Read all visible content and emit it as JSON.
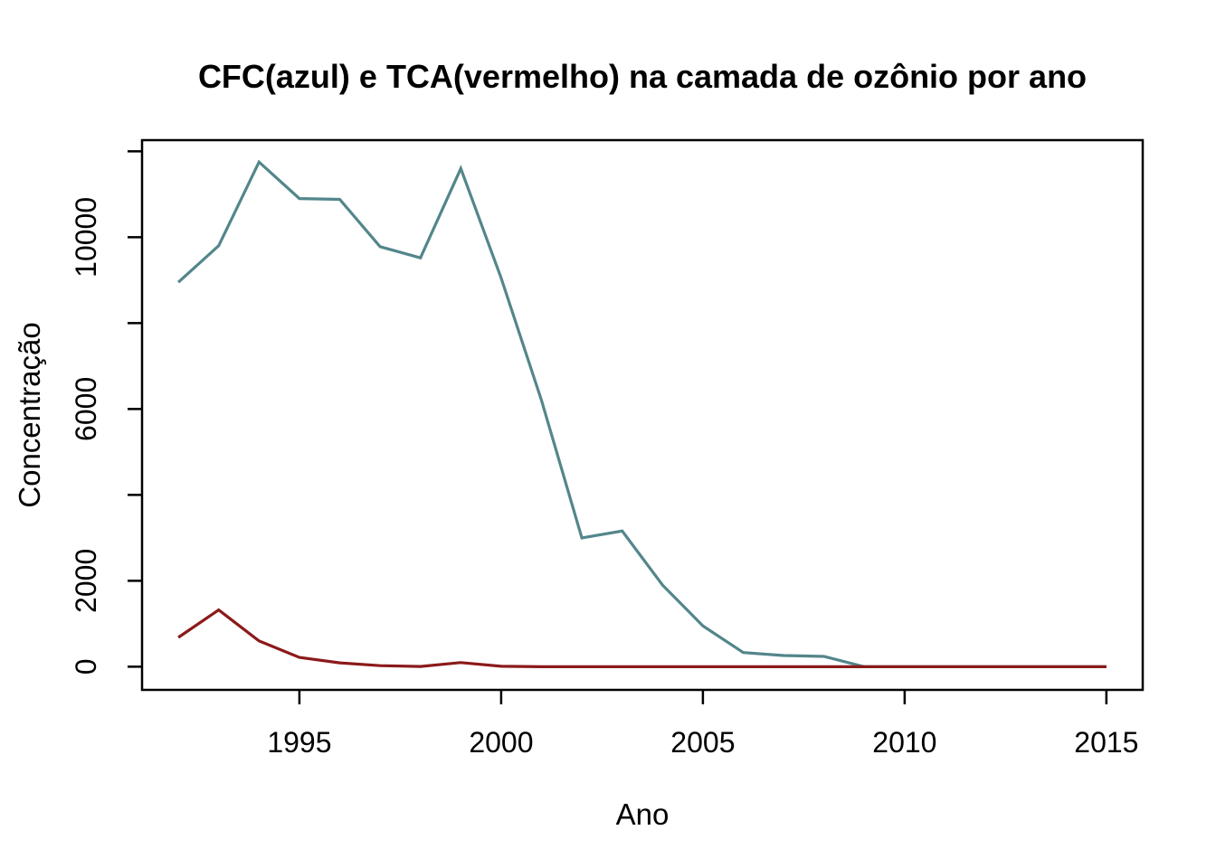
{
  "chart_data": {
    "type": "line",
    "title": "CFC(azul) e TCA(vermelho) na camada de ozônio por ano",
    "xlabel": "Ano",
    "ylabel": "Concentração",
    "x": [
      1992,
      1993,
      1994,
      1995,
      1996,
      1997,
      1998,
      1999,
      2000,
      2001,
      2002,
      2003,
      2004,
      2005,
      2006,
      2007,
      2008,
      2009,
      2010,
      2011,
      2012,
      2013,
      2014,
      2015
    ],
    "series": [
      {
        "name": "CFC",
        "color_label": "azul",
        "color": "#53868B",
        "values": [
          8950,
          9800,
          11750,
          10900,
          10880,
          9780,
          9520,
          11600,
          9050,
          6200,
          3000,
          3160,
          1900,
          950,
          330,
          260,
          240,
          0,
          0,
          0,
          0,
          0,
          0,
          0
        ]
      },
      {
        "name": "TCA",
        "color_label": "vermelho",
        "color": "#8B1A1A",
        "values": [
          680,
          1320,
          600,
          215,
          90,
          25,
          5,
          95,
          10,
          0,
          0,
          0,
          0,
          0,
          0,
          0,
          0,
          0,
          0,
          0,
          0,
          0,
          0,
          0
        ]
      }
    ],
    "xlim": [
      1991.1,
      2015.9
    ],
    "ylim": [
      -540,
      12260
    ],
    "x_ticks": {
      "values": [
        1995,
        2000,
        2005,
        2010,
        2015
      ],
      "labels": [
        "1995",
        "2000",
        "2005",
        "2010",
        "2015"
      ]
    },
    "y_ticks": {
      "values": [
        0,
        2000,
        4000,
        6000,
        8000,
        10000,
        12000
      ],
      "labels": [
        "0",
        "2000",
        "",
        "6000",
        "",
        "10000",
        ""
      ]
    },
    "grid": false,
    "legend_position": "none",
    "axis_color": "#000000",
    "background": "#ffffff"
  }
}
